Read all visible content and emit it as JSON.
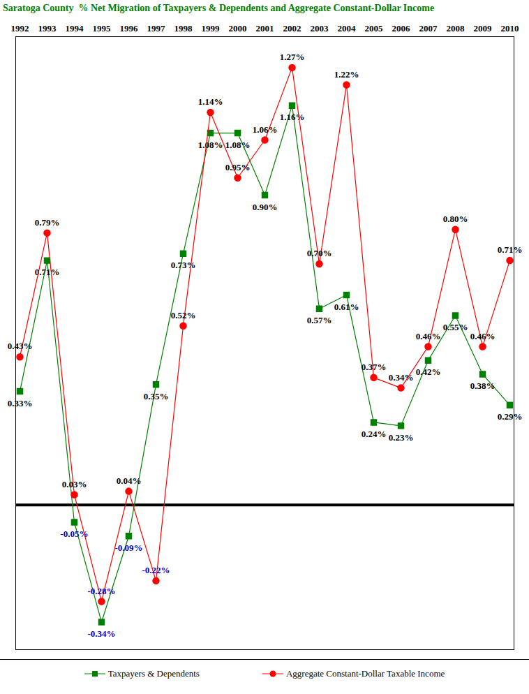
{
  "chart_data": {
    "type": "line",
    "title": "Saratoga County  % Net Migration of Taxpayers & Dependents and Aggregate Constant-Dollar Income",
    "categories": [
      "1992",
      "1993",
      "1994",
      "1995",
      "1996",
      "1997",
      "1998",
      "1999",
      "2000",
      "2001",
      "2002",
      "2003",
      "2004",
      "2005",
      "2006",
      "2007",
      "2008",
      "2009",
      "2010"
    ],
    "series": [
      {
        "name": "Taxpayers & Dependents",
        "color": "#008000",
        "marker": "square",
        "values": [
          0.33,
          0.71,
          -0.05,
          -0.34,
          -0.09,
          0.35,
          0.73,
          1.08,
          1.08,
          0.9,
          1.16,
          0.57,
          0.61,
          0.24,
          0.23,
          0.42,
          0.55,
          0.38,
          0.29
        ],
        "value_labels": [
          "0.33%",
          "0.71%",
          "-0.05%",
          "-0.34%",
          "-0.09%",
          "0.35%",
          "0.73%",
          "1.08%",
          "1.08%",
          "0.90%",
          "1.16%",
          "0.57%",
          "0.61%",
          "0.24%",
          "0.23%",
          "0.42%",
          "0.55%",
          "0.38%",
          "0.29%"
        ]
      },
      {
        "name": "Aggregate Constant-Dollar Taxable Income",
        "color": "#ff0000",
        "marker": "circle",
        "values": [
          0.43,
          0.79,
          0.03,
          -0.28,
          0.04,
          -0.22,
          0.52,
          1.14,
          0.95,
          1.06,
          1.27,
          0.7,
          1.22,
          0.37,
          0.34,
          0.46,
          0.8,
          0.46,
          0.71
        ],
        "value_labels": [
          "0.43%",
          "0.79%",
          "0.03%",
          "-0.28%",
          "0.04%",
          "-0.22%",
          "0.52%",
          "1.14%",
          "0.95%",
          "1.06%",
          "1.27%",
          "0.70%",
          "1.22%",
          "0.37%",
          "0.34%",
          "0.46%",
          "0.80%",
          "0.46%",
          "0.71%"
        ]
      }
    ],
    "ylim": [
      -0.42,
      1.36
    ],
    "yticks": [
      0
    ],
    "grid": false,
    "data_labels": true,
    "tick_labels": "x",
    "legend": "bottom"
  }
}
